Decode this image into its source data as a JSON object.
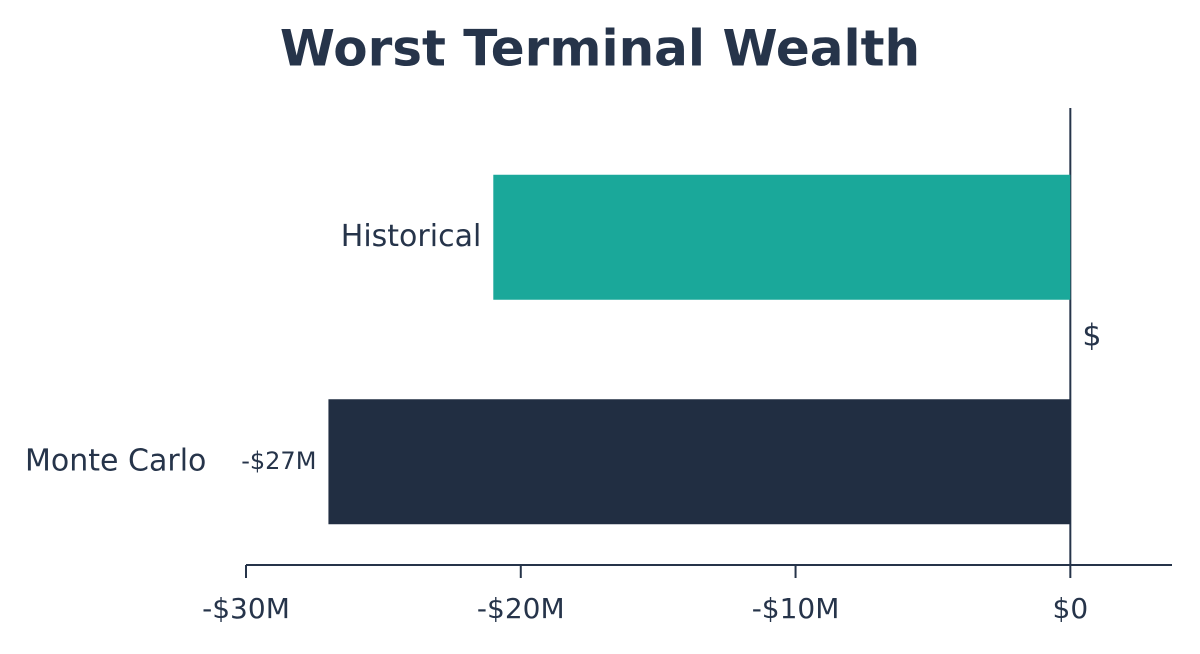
{
  "chart_data": {
    "type": "hbar",
    "title": "Worst Terminal Wealth",
    "categories": [
      "Historical",
      "Monte Carlo"
    ],
    "values": [
      -21000000,
      -27000000
    ],
    "value_labels": [
      null,
      "-$27M"
    ],
    "colors": [
      "#1aa89a",
      "#212e42"
    ],
    "annotation": "$",
    "xlim": [
      -30000000,
      3700000
    ],
    "xticks": [
      {
        "value": -30000000,
        "label": "-$30M"
      },
      {
        "value": -20000000,
        "label": "-$20M"
      },
      {
        "value": -10000000,
        "label": "-$10M"
      },
      {
        "value": 0,
        "label": "$0"
      }
    ],
    "grid": false
  }
}
